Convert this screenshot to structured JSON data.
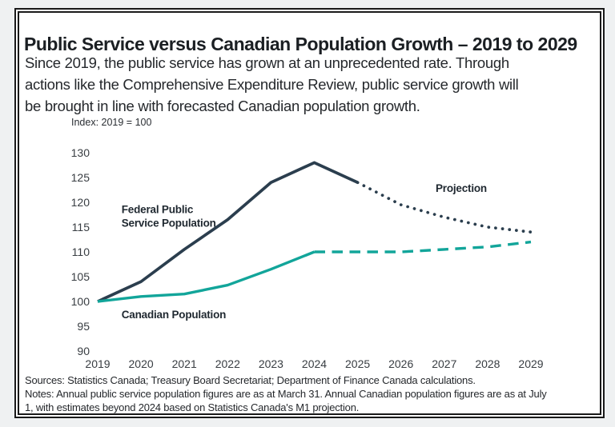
{
  "card": {
    "title": "Public Service versus Canadian Population Growth – 2019 to 2029",
    "description_lines": [
      "Since 2019, the public service has grown at an unprecedented rate. Through",
      "actions like the Comprehensive Expenditure Review, public service growth will",
      "be brought in line with forecasted Canadian population growth."
    ],
    "sources": "Sources: Statistics Canada; Treasury Board Secretariat; Department of Finance Canada calculations.",
    "notes_lines": [
      "Notes: Annual public service population figures are as at March 31. Annual Canadian population figures are as at July",
      "1, with estimates beyond 2024 based on Statistics Canada's M1 projection."
    ]
  },
  "colors": {
    "navy": "#2b3e4e",
    "teal": "#12a59a",
    "border": "#1a1a1a",
    "page_bg": "#eff1f2",
    "card_bg": "#ffffff"
  },
  "chart_data": {
    "type": "line",
    "title": "Index: 2019 = 100",
    "x": [
      2019,
      2020,
      2021,
      2022,
      2023,
      2024,
      2025,
      2026,
      2027,
      2028,
      2029
    ],
    "xlabel": "",
    "ylabel": "",
    "ylim": [
      90,
      130
    ],
    "ytick_step": 5,
    "grid": false,
    "legend_position": "none",
    "series": [
      {
        "key": "federal-public-service-actual",
        "name": "Federal Public Service Population",
        "segment": "actual",
        "style": "solid",
        "color": "navy",
        "values": [
          100,
          104,
          110.5,
          116.5,
          124,
          128,
          124,
          null,
          null,
          null,
          null
        ]
      },
      {
        "key": "federal-public-service-projection",
        "name": "Federal Public Service Population",
        "segment": "projection",
        "style": "dotted",
        "color": "navy",
        "values": [
          null,
          null,
          null,
          null,
          null,
          null,
          124,
          119.5,
          117,
          115,
          114
        ]
      },
      {
        "key": "canadian-population-actual",
        "name": "Canadian Population",
        "segment": "actual",
        "style": "solid",
        "color": "teal",
        "values": [
          100,
          101,
          101.5,
          103.3,
          106.5,
          110,
          null,
          null,
          null,
          null,
          null
        ]
      },
      {
        "key": "canadian-population-projection",
        "name": "Canadian Population",
        "segment": "projection",
        "style": "dashed",
        "color": "teal",
        "values": [
          null,
          null,
          null,
          null,
          null,
          110,
          110,
          110,
          110.5,
          111,
          112
        ]
      }
    ],
    "annotations": [
      {
        "text_lines": [
          "Federal Public",
          "Service Population"
        ],
        "x": 2019.55,
        "y": 117.8
      },
      {
        "text_lines": [
          "Canadian Population"
        ],
        "x": 2019.55,
        "y": 96.6
      },
      {
        "text_lines": [
          "Projection"
        ],
        "x": 2026.8,
        "y": 122.1
      }
    ]
  }
}
